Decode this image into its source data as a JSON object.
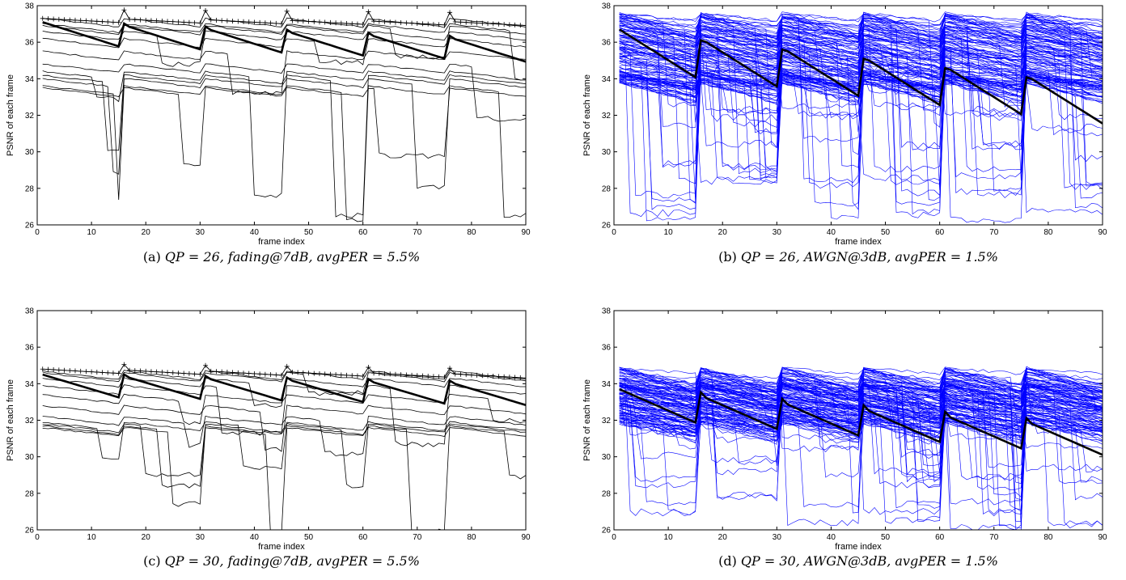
{
  "colors": {
    "black_series": "#000000",
    "blue_series": "#0000ff",
    "axis": "#000000",
    "background": "#ffffff"
  },
  "chart_data": [
    {
      "type": "line",
      "panel": "a",
      "xlabel": "frame index",
      "ylabel": "PSNR of each frame",
      "xlim": [
        0,
        90
      ],
      "ylim": [
        26,
        38
      ],
      "xticks": [
        0,
        10,
        20,
        30,
        40,
        50,
        60,
        70,
        80,
        90
      ],
      "yticks": [
        26,
        28,
        30,
        32,
        34,
        36,
        38
      ],
      "caption": {
        "prefix": "(a) ",
        "math": "QP = 26, fading@7dB, avgPER = 5.5%"
      },
      "refresh_frames": [
        16,
        31,
        46,
        61,
        76
      ],
      "upper_bound": {
        "start": 37.3,
        "peak": 37.8,
        "end": 37.1,
        "marker": "+"
      },
      "mean": {
        "start": 37.1,
        "end": 36.1,
        "peak": 37.4
      },
      "series_color": "black",
      "series": [
        {
          "start": 37.3,
          "drops": []
        },
        {
          "start": 37.0,
          "drops": [
            {
              "at": 88,
              "to": 34.0
            }
          ]
        },
        {
          "start": 36.9,
          "drops": [
            {
              "at": 66,
              "to": 35.2
            }
          ]
        },
        {
          "start": 36.6,
          "drops": [
            {
              "at": 23,
              "to": 34.8
            }
          ]
        },
        {
          "start": 36.2,
          "drops": [
            {
              "at": 52,
              "to": 34.9
            }
          ]
        },
        {
          "start": 35.5,
          "drops": [
            {
              "at": 36,
              "to": 33.2
            }
          ]
        },
        {
          "start": 34.8,
          "drops": [
            {
              "at": 81,
              "to": 31.8
            }
          ]
        },
        {
          "start": 34.4,
          "drops": [
            {
              "at": 11,
              "to": 32.9
            },
            {
              "at": 40,
              "to": 27.6
            }
          ]
        },
        {
          "start": 34.2,
          "drops": [
            {
              "at": 13,
              "to": 30.2
            },
            {
              "at": 55,
              "to": 26.5
            }
          ]
        },
        {
          "start": 34.0,
          "drops": [
            {
              "at": 14,
              "to": 28.8
            },
            {
              "at": 70,
              "to": 28.1
            }
          ]
        },
        {
          "start": 33.6,
          "drops": [
            {
              "at": 15,
              "to": 27.5
            },
            {
              "at": 57,
              "to": 26.3
            },
            {
              "at": 86,
              "to": 26.5
            }
          ]
        },
        {
          "start": 33.5,
          "drops": [
            {
              "at": 27,
              "to": 29.3
            },
            {
              "at": 63,
              "to": 29.8
            }
          ]
        }
      ]
    },
    {
      "type": "line",
      "panel": "b",
      "xlabel": "frame index",
      "ylabel": "PSNR of each frame",
      "xlim": [
        0,
        90
      ],
      "ylim": [
        26,
        38
      ],
      "xticks": [
        0,
        10,
        20,
        30,
        40,
        50,
        60,
        70,
        80,
        90
      ],
      "yticks": [
        26,
        28,
        30,
        32,
        34,
        36,
        38
      ],
      "caption": {
        "prefix": "(b) ",
        "math": "QP = 26, AWGN@3dB, avgPER = 1.5%"
      },
      "refresh_frames": [
        16,
        31,
        46,
        61,
        76
      ],
      "mean": {
        "start": 36.7,
        "end": 33.7,
        "peak": 36.4,
        "gop_decay": 2.3
      },
      "series_color": "blue",
      "series_count": 120,
      "level_range": [
        33.7,
        37.6
      ],
      "drop_range": [
        26.3,
        35.0
      ]
    },
    {
      "type": "line",
      "panel": "c",
      "xlabel": "frame index",
      "ylabel": "PSNR of each frame",
      "xlim": [
        0,
        90
      ],
      "ylim": [
        26,
        38
      ],
      "xticks": [
        0,
        10,
        20,
        30,
        40,
        50,
        60,
        70,
        80,
        90
      ],
      "yticks": [
        26,
        28,
        30,
        32,
        34,
        36,
        38
      ],
      "caption": {
        "prefix": "(c) ",
        "math": "QP = 30, fading@7dB, avgPER = 5.5%"
      },
      "refresh_frames": [
        16,
        31,
        46,
        61,
        76
      ],
      "upper_bound": {
        "start": 34.8,
        "peak": 35.1,
        "end": 34.5,
        "marker": "+"
      },
      "mean": {
        "start": 34.5,
        "end": 34.0,
        "peak": 34.8
      },
      "series_color": "black",
      "series": [
        {
          "start": 34.7,
          "drops": []
        },
        {
          "start": 34.6,
          "drops": [
            {
              "at": 50,
              "to": 33.5
            }
          ]
        },
        {
          "start": 34.3,
          "drops": [
            {
              "at": 40,
              "to": 32.8
            }
          ]
        },
        {
          "start": 33.9,
          "drops": [
            {
              "at": 34,
              "to": 31.3
            },
            {
              "at": 66,
              "to": 30.7
            }
          ]
        },
        {
          "start": 33.4,
          "drops": [
            {
              "at": 27,
              "to": 31.8
            },
            {
              "at": 84,
              "to": 32.0
            }
          ]
        },
        {
          "start": 32.8,
          "drops": [
            {
              "at": 42,
              "to": 30.4
            }
          ]
        },
        {
          "start": 32.2,
          "drops": [
            {
              "at": 28,
              "to": 30.6
            },
            {
              "at": 53,
              "to": 30.2
            }
          ]
        },
        {
          "start": 31.9,
          "drops": [
            {
              "at": 12,
              "to": 29.9
            },
            {
              "at": 38,
              "to": 29.4
            }
          ]
        },
        {
          "start": 31.8,
          "drops": [
            {
              "at": 20,
              "to": 29.0
            },
            {
              "at": 57,
              "to": 28.4
            }
          ]
        },
        {
          "start": 31.7,
          "drops": [
            {
              "at": 23,
              "to": 28.4
            },
            {
              "at": 69,
              "to": 25.9
            },
            {
              "at": 87,
              "to": 28.9
            }
          ]
        },
        {
          "start": 31.6,
          "drops": [
            {
              "at": 25,
              "to": 27.4
            },
            {
              "at": 43,
              "to": 25.8
            }
          ]
        }
      ]
    },
    {
      "type": "line",
      "panel": "d",
      "xlabel": "frame index",
      "ylabel": "PSNR of each frame",
      "xlim": [
        0,
        90
      ],
      "ylim": [
        26,
        38
      ],
      "xticks": [
        0,
        10,
        20,
        30,
        40,
        50,
        60,
        70,
        80,
        90
      ],
      "yticks": [
        26,
        28,
        30,
        32,
        34,
        36,
        38
      ],
      "caption": {
        "prefix": "(d) ",
        "math": "QP = 30, AWGN@3dB, avgPER = 1.5%"
      },
      "refresh_frames": [
        16,
        31,
        46,
        61,
        76
      ],
      "mean": {
        "start": 33.7,
        "end": 31.6,
        "peak": 34.3,
        "gop_decay": 1.6
      },
      "series_color": "blue",
      "series_count": 120,
      "level_range": [
        31.8,
        34.9
      ],
      "drop_range": [
        26.0,
        33.0
      ]
    }
  ]
}
